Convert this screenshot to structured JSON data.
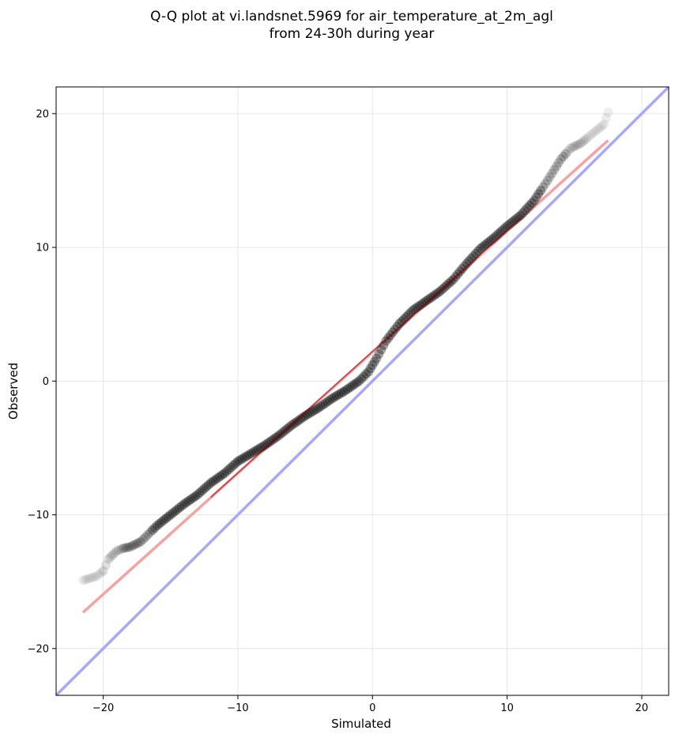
{
  "chart_data": {
    "type": "scatter",
    "title": "Q-Q plot at vi.landsnet.5969 for air_temperature_at_2m_agl",
    "subtitle": "from 24-30h during year",
    "xlabel": "Simulated",
    "ylabel": "Observed",
    "xlim": [
      -23.5,
      22.0
    ],
    "ylim": [
      -23.5,
      22.0
    ],
    "x_ticks": [
      -20,
      -10,
      0,
      10,
      20
    ],
    "y_ticks": [
      -20,
      -10,
      0,
      10,
      20
    ],
    "x_tick_labels": [
      "−20",
      "−10",
      "0",
      "10",
      "20"
    ],
    "y_tick_labels": [
      "−20",
      "−10",
      "0",
      "10",
      "20"
    ],
    "grid": true,
    "quantile_curve": [
      [
        -21.5,
        -14.9
      ],
      [
        -20.5,
        -14.6
      ],
      [
        -20.0,
        -14.2
      ],
      [
        -19.6,
        -13.3
      ],
      [
        -19.0,
        -12.7
      ],
      [
        -18.5,
        -12.5
      ],
      [
        -18.0,
        -12.4
      ],
      [
        -17.2,
        -12.0
      ],
      [
        -16.0,
        -10.8
      ],
      [
        -15.0,
        -10.0
      ],
      [
        -14.0,
        -9.2
      ],
      [
        -13.0,
        -8.5
      ],
      [
        -12.0,
        -7.6
      ],
      [
        -11.0,
        -6.9
      ],
      [
        -10.0,
        -6.0
      ],
      [
        -9.0,
        -5.4
      ],
      [
        -8.0,
        -4.8
      ],
      [
        -7.0,
        -4.1
      ],
      [
        -6.0,
        -3.3
      ],
      [
        -5.0,
        -2.6
      ],
      [
        -4.0,
        -2.0
      ],
      [
        -3.0,
        -1.3
      ],
      [
        -2.0,
        -0.7
      ],
      [
        -1.0,
        0.0
      ],
      [
        -0.3,
        0.7
      ],
      [
        0.3,
        1.7
      ],
      [
        1.0,
        3.0
      ],
      [
        2.0,
        4.3
      ],
      [
        3.0,
        5.3
      ],
      [
        4.0,
        6.0
      ],
      [
        5.0,
        6.7
      ],
      [
        6.0,
        7.6
      ],
      [
        7.0,
        8.8
      ],
      [
        8.0,
        9.9
      ],
      [
        9.0,
        10.7
      ],
      [
        10.0,
        11.6
      ],
      [
        11.0,
        12.4
      ],
      [
        12.0,
        13.5
      ],
      [
        13.0,
        15.0
      ],
      [
        14.0,
        16.6
      ],
      [
        14.7,
        17.4
      ],
      [
        15.5,
        17.8
      ],
      [
        16.2,
        18.4
      ],
      [
        17.2,
        19.2
      ],
      [
        17.5,
        20.1
      ]
    ],
    "fit_line": {
      "x": [
        -21.5,
        17.5
      ],
      "y": [
        -17.3,
        18.0
      ],
      "color": "#f4a3a3"
    },
    "reference_line": {
      "slope": 1,
      "intercept": 0,
      "color": "#a8a8f5"
    },
    "point_color": "#000000"
  }
}
